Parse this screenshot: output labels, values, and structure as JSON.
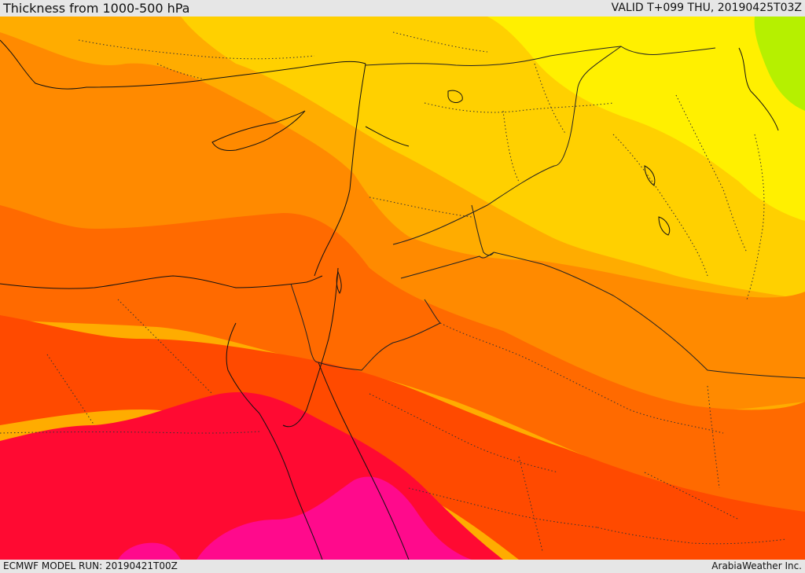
{
  "header": {
    "title": "Thickness from 1000-500 hPa",
    "valid_time": "VALID T+099 THU, 20190425T03Z"
  },
  "footer": {
    "model_run": "ECMWF MODEL RUN: 20190421T00Z",
    "credit": "ArabiaWeather Inc."
  },
  "map": {
    "colors": {
      "band_green": "#b6f000",
      "band_yellow": "#fff000",
      "band_gold": "#ffd000",
      "band_amber": "#ffac00",
      "band_orange": "#ff8a00",
      "band_dark_orange": "#ff6a00",
      "band_red_orange": "#ff4a00",
      "band_red": "#ff0a32",
      "band_magenta": "#ff0a8c",
      "coastline": "#111111",
      "border": "#222222"
    }
  }
}
